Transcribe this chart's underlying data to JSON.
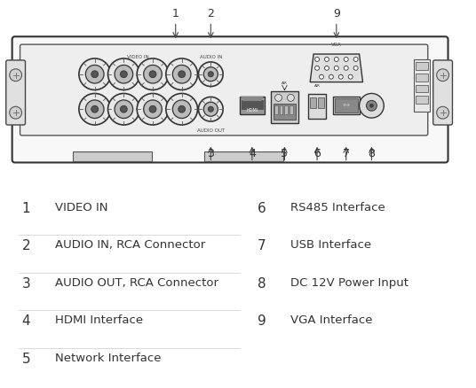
{
  "background_color": "#ffffff",
  "text_color": "#333333",
  "line_color": "#444444",
  "labels_left": [
    {
      "num": "1",
      "text": "VIDEO IN"
    },
    {
      "num": "2",
      "text": "AUDIO IN, RCA Connector"
    },
    {
      "num": "3",
      "text": "AUDIO OUT, RCA Connector"
    },
    {
      "num": "4",
      "text": "HDMI Interface"
    },
    {
      "num": "5",
      "text": "Network Interface"
    }
  ],
  "labels_right": [
    {
      "num": "6",
      "text": "RS485 Interface"
    },
    {
      "num": "7",
      "text": "USB Interface"
    },
    {
      "num": "8",
      "text": "DC 12V Power Input"
    },
    {
      "num": "9",
      "text": "VGA Interface"
    }
  ]
}
